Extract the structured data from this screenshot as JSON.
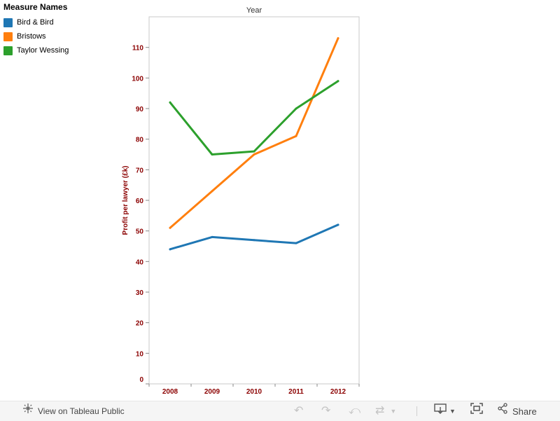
{
  "legend": {
    "title": "Measure Names",
    "items": [
      {
        "label": "Bird & Bird",
        "color": "#1f77b4"
      },
      {
        "label": "Bristows",
        "color": "#ff7f0e"
      },
      {
        "label": "Taylor Wessing",
        "color": "#2ca02c"
      }
    ]
  },
  "chart_data": {
    "type": "line",
    "title": "Year",
    "xlabel": "",
    "ylabel": "Profit per lawyer (£k)",
    "x": [
      "2008",
      "2009",
      "2010",
      "2011",
      "2012"
    ],
    "ylim": [
      0,
      120
    ],
    "yticks": [
      0,
      10,
      20,
      30,
      40,
      50,
      60,
      70,
      80,
      90,
      100,
      110
    ],
    "grid": false,
    "legend_position": "top-left",
    "axis_label_color": "#8b0000",
    "series": [
      {
        "name": "Bird & Bird",
        "color": "#1f77b4",
        "values": [
          44,
          48,
          47,
          46,
          52
        ]
      },
      {
        "name": "Bristows",
        "color": "#ff7f0e",
        "values": [
          51,
          63,
          75,
          81,
          113
        ]
      },
      {
        "name": "Taylor Wessing",
        "color": "#2ca02c",
        "values": [
          92,
          75,
          76,
          90,
          99
        ]
      }
    ]
  },
  "toolbar": {
    "view_label": "View on Tableau Public",
    "share_label": "Share",
    "icons": [
      "network-icon",
      "undo-icon",
      "redo-icon",
      "revert-icon",
      "refresh-icon",
      "download-icon",
      "fullscreen-icon",
      "share-icon"
    ]
  }
}
